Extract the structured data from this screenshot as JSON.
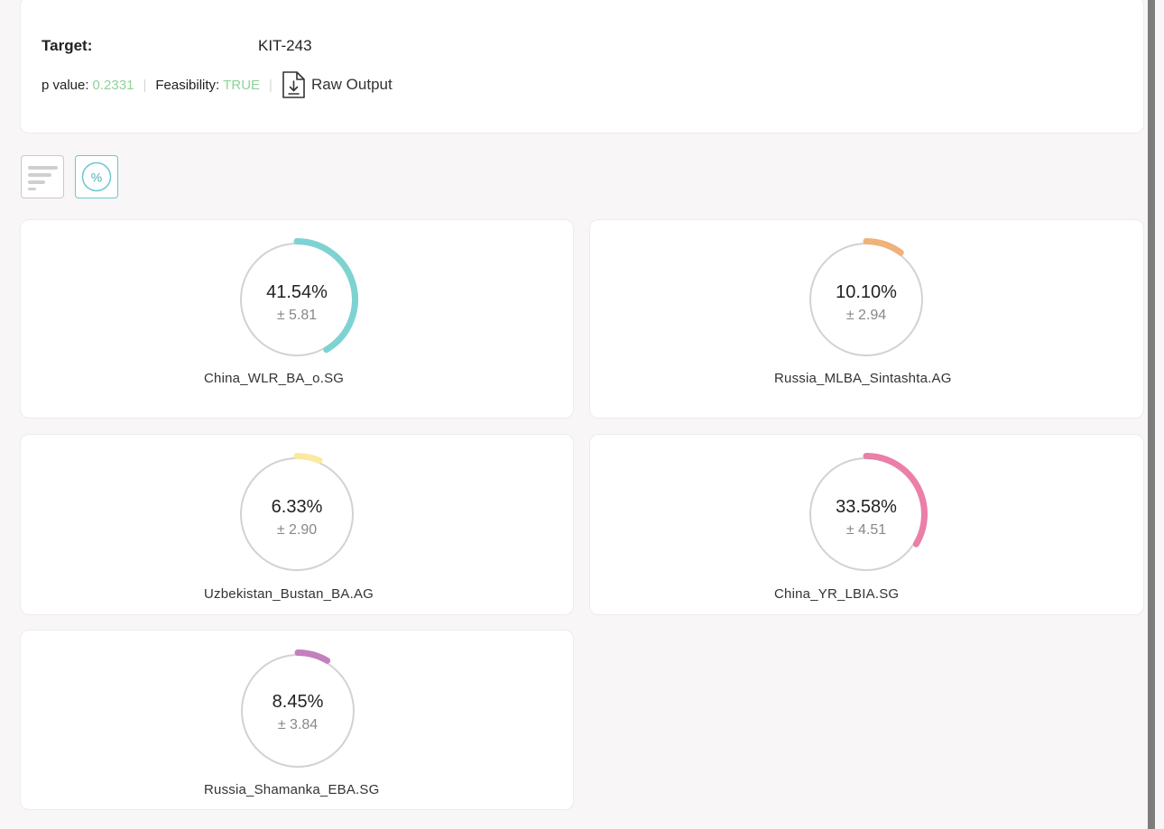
{
  "summary": {
    "target_label": "Target:",
    "target_value": "KIT-243",
    "p_label": "p value:",
    "p_value": "0.2331",
    "feasibility_label": "Feasibility:",
    "feasibility_value": "TRUE",
    "separator": "|",
    "raw_output_label": "Raw Output",
    "raw_output_icon": "download-file-icon"
  },
  "toolbar": {
    "list_view_icon": "bars-icon",
    "percent_view_icon": "percent-circle-icon",
    "percent_symbol": "%"
  },
  "cards": [
    {
      "percent": "41.54%",
      "error": "± 5.81",
      "label": "China_WLR_BA_o.SG",
      "value": 41.54,
      "color": "#7dd3d1"
    },
    {
      "percent": "10.10%",
      "error": "± 2.94",
      "label": "Russia_MLBA_Sintashta.AG",
      "value": 10.1,
      "color": "#f0b17a"
    },
    {
      "percent": "6.33%",
      "error": "± 2.90",
      "label": "Uzbekistan_Bustan_BA.AG",
      "value": 6.33,
      "color": "#fbe9a2"
    },
    {
      "percent": "33.58%",
      "error": "± 4.51",
      "label": "China_YR_LBIA.SG",
      "value": 33.58,
      "color": "#ea7fa7"
    },
    {
      "percent": "8.45%",
      "error": "± 3.84",
      "label": "Russia_Shamanka_EBA.SG",
      "value": 8.45,
      "color": "#c37fbe"
    }
  ]
}
